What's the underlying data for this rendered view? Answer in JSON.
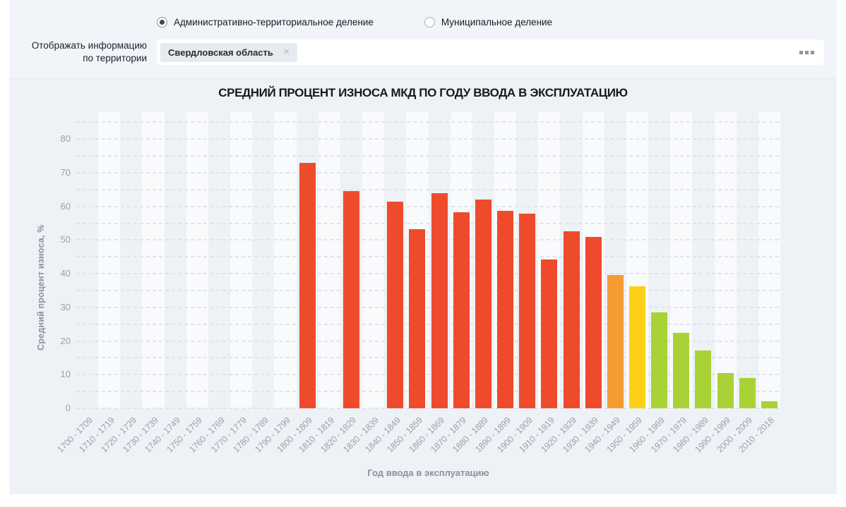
{
  "filters": {
    "radio_group": {
      "options": [
        {
          "label": "Административно-территориальное деление",
          "selected": true
        },
        {
          "label": "Муниципальное деление",
          "selected": false
        }
      ]
    },
    "territory": {
      "label": "Отображать информацию по территории",
      "chips": [
        {
          "text": "Свердловская область",
          "close_icon": "×"
        }
      ],
      "more_icon": "ellipsis-three-squares"
    }
  },
  "chart_data": {
    "type": "bar",
    "title": "СРЕДНИЙ ПРОЦЕНТ ИЗНОСА МКД ПО ГОДУ ВВОДА В ЭКСПЛУАТАЦИЮ",
    "xlabel": "Год ввода в эксплуатацию",
    "ylabel": "Средний процент износа, %",
    "ylim": [
      0,
      88
    ],
    "yticks": [
      0,
      10,
      20,
      30,
      40,
      50,
      60,
      70,
      80
    ],
    "grid": "dashed horizontal every 5 units",
    "legend": "none",
    "categories": [
      "1700 - 1709",
      "1710 - 1719",
      "1720 - 1729",
      "1730 - 1739",
      "1740 - 1749",
      "1750 - 1759",
      "1760 - 1769",
      "1770 - 1779",
      "1780 - 1789",
      "1790 - 1799",
      "1800 - 1809",
      "1810 - 1819",
      "1820 - 1829",
      "1830 - 1839",
      "1840 - 1849",
      "1850 - 1859",
      "1860 - 1869",
      "1870 - 1879",
      "1880 - 1889",
      "1890 - 1899",
      "1900 - 1909",
      "1910 - 1919",
      "1920 - 1929",
      "1930 - 1939",
      "1940 - 1949",
      "1950 - 1959",
      "1960 - 1969",
      "1970 - 1979",
      "1980 - 1989",
      "1990 - 1999",
      "2000 - 2009",
      "2010 - 2018"
    ],
    "values": [
      null,
      null,
      null,
      null,
      null,
      null,
      null,
      null,
      null,
      null,
      73,
      null,
      64.5,
      null,
      61.3,
      53.2,
      64,
      58.3,
      62,
      58.6,
      57.8,
      44.2,
      52.5,
      51,
      39.6,
      36.2,
      28.5,
      22.4,
      17.2,
      10.4,
      9.0,
      2.1
    ],
    "color_keys": [
      null,
      null,
      null,
      null,
      null,
      null,
      null,
      null,
      null,
      null,
      "red",
      null,
      "red",
      null,
      "red",
      "red",
      "red",
      "red",
      "red",
      "red",
      "red",
      "red",
      "red",
      "red",
      "orange",
      "yellow",
      "green",
      "green",
      "green",
      "green",
      "green",
      "green"
    ],
    "palette": {
      "red": "#ee4b2c",
      "orange": "#f49b31",
      "yellow": "#fcd016",
      "green": "#a9d237"
    }
  },
  "colors": {
    "top_panel_bg": "#f1f4f8",
    "chart_panel_bg": "#eef2f7",
    "stripe_dark": "#eef1f5",
    "stripe_light": "#f9fafc",
    "grid_line": "#e0e3e8",
    "axis_text": "#9aa1a8",
    "axis_title": "#8b9199",
    "title_text": "#16191d"
  }
}
